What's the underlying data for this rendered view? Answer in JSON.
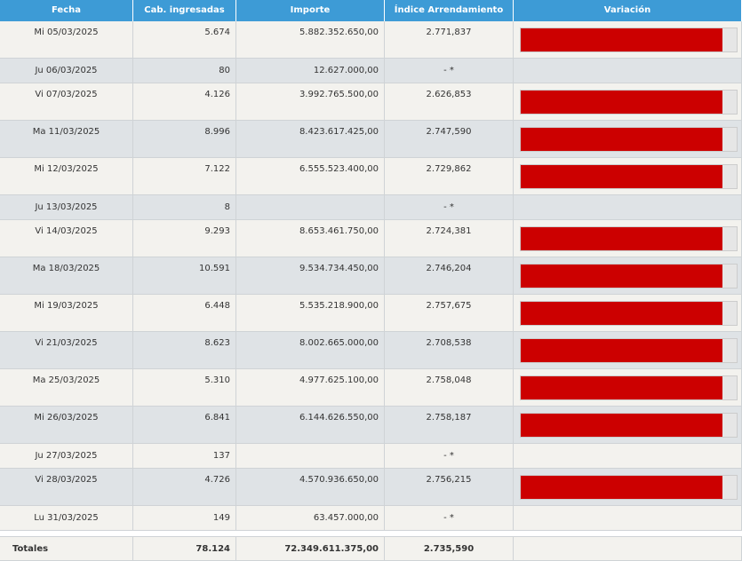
{
  "table": {
    "columns": [
      "Fecha",
      "Cab. ingresadas",
      "Importe",
      "Índice Arrendamiento",
      "Variación"
    ],
    "rows": [
      [
        "Mi 05/03/2025",
        "5.674",
        "5.882.352.650,00",
        "2.771,837"
      ],
      [
        "Ju 06/03/2025",
        "80",
        "12.627.000,00",
        "- *"
      ],
      [
        "Vi 07/03/2025",
        "4.126",
        "3.992.765.500,00",
        "2.626,853"
      ],
      [
        "Ma 11/03/2025",
        "8.996",
        "8.423.617.425,00",
        "2.747,590"
      ],
      [
        "Mi 12/03/2025",
        "7.122",
        "6.555.523.400,00",
        "2.729,862"
      ],
      [
        "Ju 13/03/2025",
        "8",
        null,
        "- *"
      ],
      [
        "Vi 14/03/2025",
        "9.293",
        "8.653.461.750,00",
        "2.724,381"
      ],
      [
        "Ma 18/03/2025",
        "10.591",
        "9.534.734.450,00",
        "2.746,204"
      ],
      [
        "Mi 19/03/2025",
        "6.448",
        "5.535.218.900,00",
        "2.757,675"
      ],
      [
        "Vi 21/03/2025",
        "8.623",
        "8.002.665.000,00",
        "2.708,538"
      ],
      [
        "Ma 25/03/2025",
        "5.310",
        "4.977.625.100,00",
        "2.758,048"
      ],
      [
        "Mi 26/03/2025",
        "6.841",
        "6.144.626.550,00",
        "2.758,187"
      ],
      [
        "Ju 27/03/2025",
        "137",
        null,
        "- *"
      ],
      [
        "Vi 28/03/2025",
        "4.726",
        "4.570.936.650,00",
        "2.756,215"
      ],
      [
        "Lu 31/03/2025",
        "149",
        "63.457.000,00",
        "- *"
      ]
    ],
    "totals": [
      "Totales",
      "78.124",
      "72.349.611.375,00",
      "2.735,590"
    ]
  }
}
